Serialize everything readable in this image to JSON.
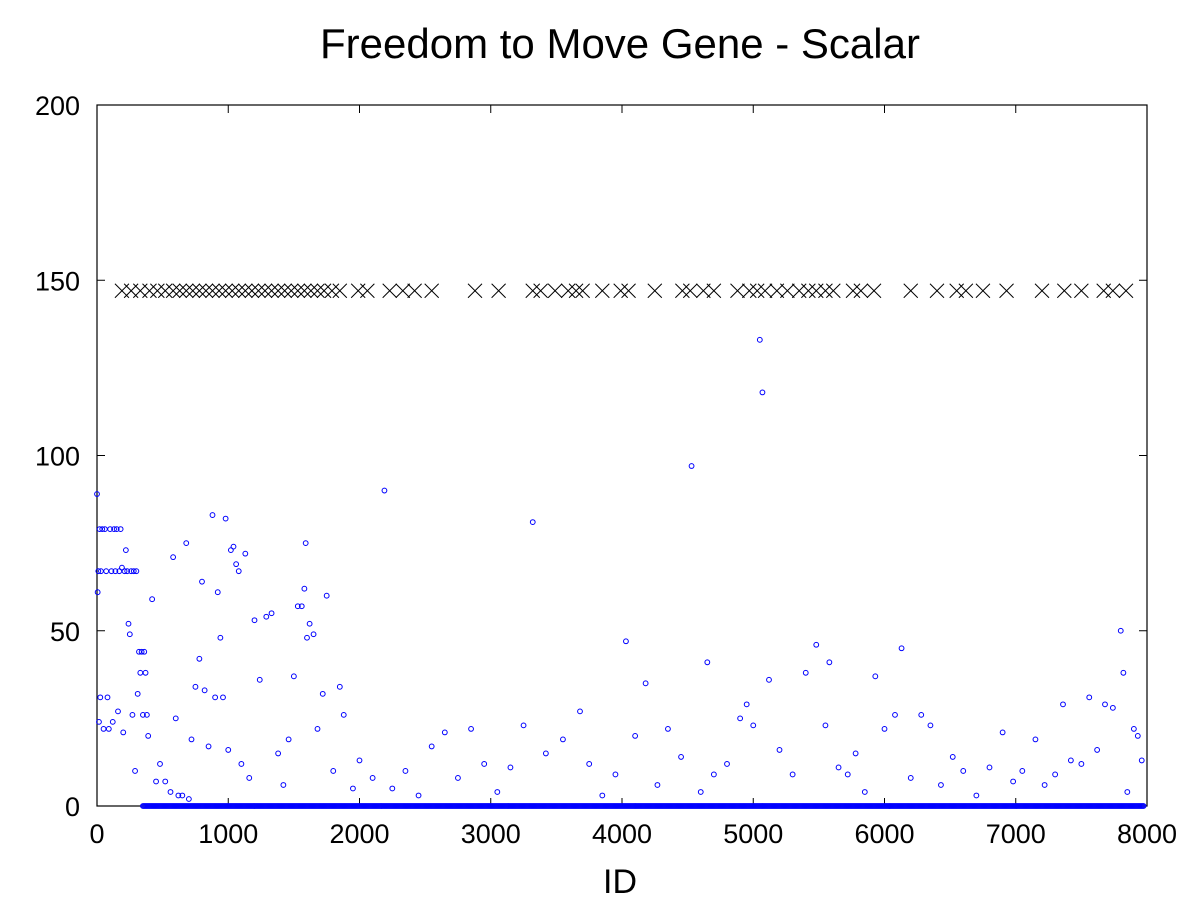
{
  "chart_data": {
    "type": "scatter",
    "title": "Freedom to Move Gene - Scalar",
    "xlabel": "ID",
    "ylabel": "",
    "xlim": [
      0,
      8000
    ],
    "ylim": [
      0,
      200
    ],
    "x_ticks": [
      "0",
      "1000",
      "2000",
      "3000",
      "4000",
      "5000",
      "6000",
      "7000",
      "8000"
    ],
    "y_ticks": [
      "0",
      "50",
      "100",
      "150",
      "200"
    ],
    "grid": false,
    "legend": "none",
    "colors": {
      "series_circles": "#0000ff",
      "series_crosses": "#000000",
      "axis": "#000000"
    },
    "series": [
      {
        "marker": "circle",
        "points": [
          [
            0,
            89
          ],
          [
            5,
            61
          ],
          [
            10,
            67
          ],
          [
            15,
            24
          ],
          [
            20,
            79
          ],
          [
            25,
            31
          ],
          [
            30,
            67
          ],
          [
            40,
            79
          ],
          [
            50,
            22
          ],
          [
            60,
            79
          ],
          [
            70,
            67
          ],
          [
            80,
            31
          ],
          [
            90,
            22
          ],
          [
            100,
            79
          ],
          [
            110,
            67
          ],
          [
            120,
            24
          ],
          [
            130,
            79
          ],
          [
            140,
            67
          ],
          [
            150,
            79
          ],
          [
            160,
            27
          ],
          [
            170,
            67
          ],
          [
            180,
            79
          ],
          [
            190,
            68
          ],
          [
            200,
            21
          ],
          [
            210,
            67
          ],
          [
            220,
            73
          ],
          [
            230,
            67
          ],
          [
            240,
            52
          ],
          [
            250,
            49
          ],
          [
            260,
            67
          ],
          [
            270,
            26
          ],
          [
            280,
            67
          ],
          [
            290,
            10
          ],
          [
            300,
            67
          ],
          [
            310,
            32
          ],
          [
            320,
            44
          ],
          [
            330,
            38
          ],
          [
            340,
            44
          ],
          [
            350,
            26
          ],
          [
            360,
            44
          ],
          [
            370,
            38
          ],
          [
            380,
            26
          ],
          [
            390,
            20
          ],
          [
            420,
            59
          ],
          [
            450,
            7
          ],
          [
            480,
            12
          ],
          [
            520,
            7
          ],
          [
            560,
            4
          ],
          [
            580,
            71
          ],
          [
            600,
            25
          ],
          [
            620,
            3
          ],
          [
            650,
            3
          ],
          [
            680,
            75
          ],
          [
            700,
            2
          ],
          [
            720,
            19
          ],
          [
            750,
            34
          ],
          [
            780,
            42
          ],
          [
            800,
            64
          ],
          [
            820,
            33
          ],
          [
            850,
            17
          ],
          [
            880,
            83
          ],
          [
            900,
            31
          ],
          [
            920,
            61
          ],
          [
            940,
            48
          ],
          [
            960,
            31
          ],
          [
            980,
            82
          ],
          [
            1000,
            16
          ],
          [
            1020,
            73
          ],
          [
            1040,
            74
          ],
          [
            1060,
            69
          ],
          [
            1080,
            67
          ],
          [
            1100,
            12
          ],
          [
            1130,
            72
          ],
          [
            1160,
            8
          ],
          [
            1200,
            53
          ],
          [
            1240,
            36
          ],
          [
            1290,
            54
          ],
          [
            1330,
            55
          ],
          [
            1380,
            15
          ],
          [
            1420,
            6
          ],
          [
            1460,
            19
          ],
          [
            1500,
            37
          ],
          [
            1530,
            57
          ],
          [
            1560,
            57
          ],
          [
            1580,
            62
          ],
          [
            1590,
            75
          ],
          [
            1600,
            48
          ],
          [
            1620,
            52
          ],
          [
            1650,
            49
          ],
          [
            1680,
            22
          ],
          [
            1720,
            32
          ],
          [
            1750,
            60
          ],
          [
            1800,
            10
          ],
          [
            1850,
            34
          ],
          [
            1880,
            26
          ],
          [
            1950,
            5
          ],
          [
            2000,
            13
          ],
          [
            2100,
            8
          ],
          [
            2190,
            90
          ],
          [
            2250,
            5
          ],
          [
            2350,
            10
          ],
          [
            2450,
            3
          ],
          [
            2550,
            17
          ],
          [
            2650,
            21
          ],
          [
            2750,
            8
          ],
          [
            2850,
            22
          ],
          [
            2950,
            12
          ],
          [
            3050,
            4
          ],
          [
            3150,
            11
          ],
          [
            3250,
            23
          ],
          [
            3320,
            81
          ],
          [
            3420,
            15
          ],
          [
            3550,
            19
          ],
          [
            3680,
            27
          ],
          [
            3750,
            12
          ],
          [
            3850,
            3
          ],
          [
            3950,
            9
          ],
          [
            4030,
            47
          ],
          [
            4100,
            20
          ],
          [
            4180,
            35
          ],
          [
            4270,
            6
          ],
          [
            4350,
            22
          ],
          [
            4450,
            14
          ],
          [
            4530,
            97
          ],
          [
            4600,
            4
          ],
          [
            4650,
            41
          ],
          [
            4700,
            9
          ],
          [
            4800,
            12
          ],
          [
            4900,
            25
          ],
          [
            4950,
            29
          ],
          [
            5000,
            23
          ],
          [
            5050,
            133
          ],
          [
            5070,
            118
          ],
          [
            5120,
            36
          ],
          [
            5200,
            16
          ],
          [
            5300,
            9
          ],
          [
            5400,
            38
          ],
          [
            5480,
            46
          ],
          [
            5550,
            23
          ],
          [
            5580,
            41
          ],
          [
            5650,
            11
          ],
          [
            5720,
            9
          ],
          [
            5780,
            15
          ],
          [
            5850,
            4
          ],
          [
            5930,
            37
          ],
          [
            6000,
            22
          ],
          [
            6080,
            26
          ],
          [
            6130,
            45
          ],
          [
            6200,
            8
          ],
          [
            6280,
            26
          ],
          [
            6350,
            23
          ],
          [
            6430,
            6
          ],
          [
            6520,
            14
          ],
          [
            6600,
            10
          ],
          [
            6700,
            3
          ],
          [
            6800,
            11
          ],
          [
            6900,
            21
          ],
          [
            6980,
            7
          ],
          [
            7050,
            10
          ],
          [
            7150,
            19
          ],
          [
            7220,
            6
          ],
          [
            7300,
            9
          ],
          [
            7360,
            29
          ],
          [
            7420,
            13
          ],
          [
            7500,
            12
          ],
          [
            7560,
            31
          ],
          [
            7620,
            16
          ],
          [
            7680,
            29
          ],
          [
            7740,
            28
          ],
          [
            7800,
            50
          ],
          [
            7820,
            38
          ],
          [
            7850,
            4
          ],
          [
            7900,
            22
          ],
          [
            7930,
            20
          ],
          [
            7960,
            13
          ]
        ]
      },
      {
        "marker": "cross",
        "y_value": 147,
        "x": [
          190,
          260,
          330,
          400,
          460,
          520,
          580,
          630,
          680,
          730,
          780,
          830,
          880,
          930,
          980,
          1030,
          1080,
          1130,
          1180,
          1230,
          1280,
          1330,
          1380,
          1430,
          1480,
          1530,
          1580,
          1630,
          1680,
          1730,
          1790,
          1850,
          1990,
          2060,
          2230,
          2330,
          2420,
          2550,
          2880,
          3060,
          3320,
          3380,
          3490,
          3590,
          3650,
          3700,
          3850,
          3990,
          4050,
          4250,
          4460,
          4520,
          4620,
          4700,
          4880,
          4970,
          5030,
          5090,
          5180,
          5260,
          5350,
          5420,
          5480,
          5550,
          5610,
          5760,
          5820,
          5920,
          6200,
          6400,
          6550,
          6620,
          6750,
          6930,
          7200,
          7370,
          7500,
          7670,
          7740,
          7840
        ]
      }
    ]
  }
}
